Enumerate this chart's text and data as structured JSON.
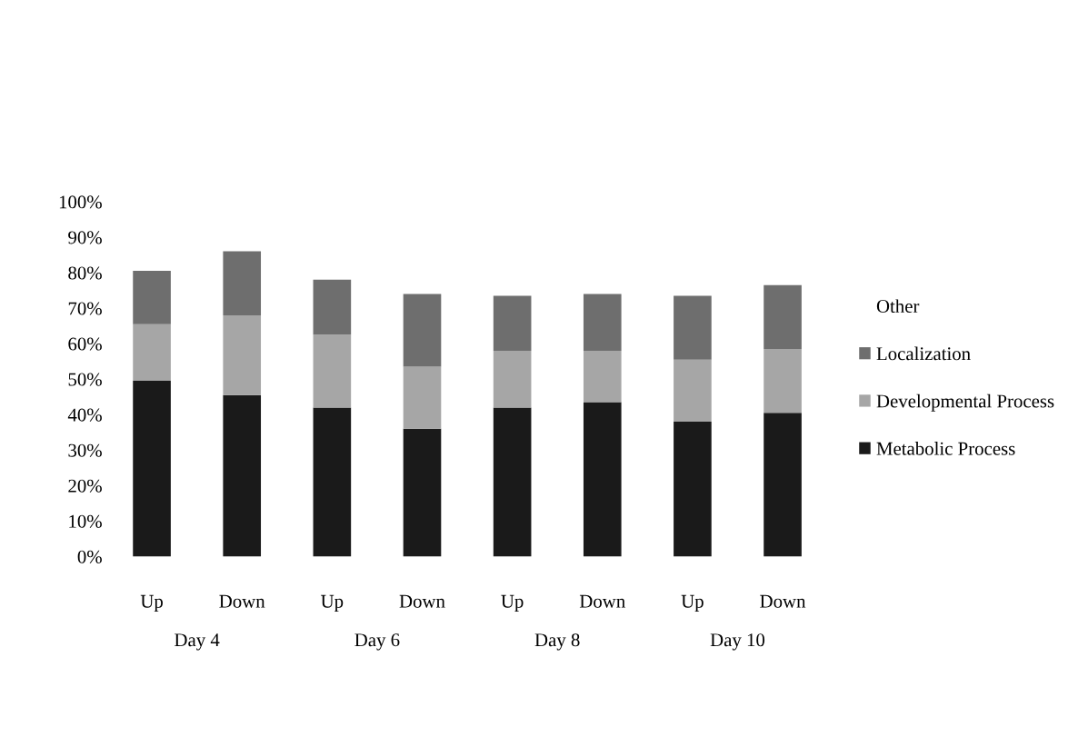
{
  "chart_data": {
    "type": "bar",
    "stacked": true,
    "categories": [
      "Up",
      "Down",
      "Up",
      "Down",
      "Up",
      "Down",
      "Up",
      "Down"
    ],
    "series": [
      {
        "name": "Metabolic Process",
        "color": "#1a1a1a",
        "values": [
          49.5,
          45.5,
          42,
          36,
          42,
          43.5,
          38,
          40.5
        ]
      },
      {
        "name": "Developmental Process",
        "color": "#a6a6a6",
        "values": [
          16,
          22.5,
          20.5,
          17.5,
          16,
          14.5,
          17.5,
          18
        ]
      },
      {
        "name": "Localization",
        "color": "#6e6e6e",
        "values": [
          15,
          18,
          15.5,
          20.5,
          15.5,
          16,
          18,
          18
        ]
      },
      {
        "name": "Other",
        "values": [
          null,
          null,
          null,
          null,
          null,
          null,
          null,
          null
        ]
      }
    ],
    "ylim": [
      0,
      100
    ],
    "yticks": [
      {
        "value": 0,
        "label": "0%"
      },
      {
        "value": 10,
        "label": "10%"
      },
      {
        "value": 20,
        "label": "20%"
      },
      {
        "value": 30,
        "label": "30%"
      },
      {
        "value": 40,
        "label": "40%"
      },
      {
        "value": 50,
        "label": "50%"
      },
      {
        "value": 60,
        "label": "60%"
      },
      {
        "value": 70,
        "label": "70%"
      },
      {
        "value": 80,
        "label": "80%"
      },
      {
        "value": 90,
        "label": "90%"
      },
      {
        "value": 100,
        "label": "100%"
      }
    ],
    "annotations": [
      "Day 4",
      "Day 6",
      "Day 8",
      "Day 10"
    ],
    "legend": "right",
    "grid": false
  }
}
